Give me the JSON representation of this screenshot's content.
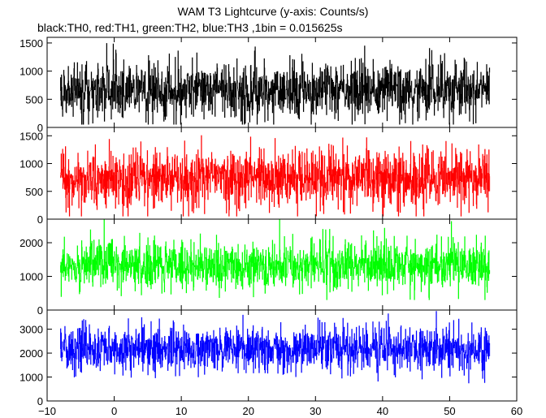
{
  "title": "WAM T3 Lightcurve (y-axis: Counts/s)",
  "subtitle": "black:TH0, red:TH1, green:TH2, blue:TH3 ,1bin = 0.015625s",
  "chart_data": {
    "type": "line",
    "title": "WAM T3 Lightcurve (y-axis: Counts/s)",
    "subtitle": "black:TH0, red:TH1, green:TH2, blue:TH3 ,1bin = 0.015625s",
    "bin_size_s": 0.015625,
    "xlim": [
      -10,
      60
    ],
    "x_data_range": [
      -8,
      56
    ],
    "xticks": [
      -10,
      0,
      10,
      20,
      30,
      40,
      50,
      60
    ],
    "x_tick_labels": [
      "−10",
      "0",
      "10",
      "20",
      "30",
      "40",
      "50",
      "60"
    ],
    "grid": false,
    "panels": [
      {
        "series": "TH0",
        "color": "#000000",
        "ylim": [
          0,
          1600
        ],
        "yticks": [
          0,
          500,
          1000,
          1500
        ],
        "y_tick_labels": [
          "0",
          "500",
          "1000",
          "1500"
        ],
        "mean": 650,
        "noise_std": 260,
        "min": 50,
        "max": 1600
      },
      {
        "series": "TH1",
        "color": "#ff0000",
        "ylim": [
          0,
          1650
        ],
        "yticks": [
          0,
          500,
          1000,
          1500
        ],
        "y_tick_labels": [
          "0",
          "500",
          "1000",
          "1500"
        ],
        "mean": 740,
        "noise_std": 280,
        "min": 50,
        "max": 1650
      },
      {
        "series": "TH2",
        "color": "#00ff00",
        "ylim": [
          0,
          2700
        ],
        "yticks": [
          0,
          1000,
          2000
        ],
        "y_tick_labels": [
          "0",
          "1000",
          "2000"
        ],
        "mean": 1330,
        "noise_std": 370,
        "min": 300,
        "max": 2700
      },
      {
        "series": "TH3",
        "color": "#0000ff",
        "ylim": [
          0,
          3800
        ],
        "yticks": [
          0,
          1000,
          2000,
          3000
        ],
        "y_tick_labels": [
          "0",
          "1000",
          "2000",
          "3000"
        ],
        "mean": 2170,
        "noise_std": 480,
        "min": 700,
        "max": 3800
      }
    ]
  }
}
